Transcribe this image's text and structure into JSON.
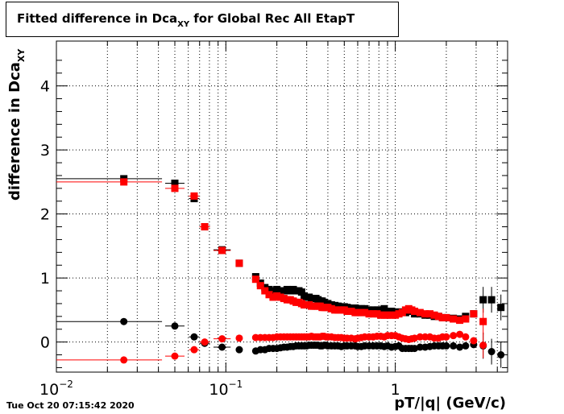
{
  "title": {
    "prefix": "Fitted difference in Dca",
    "subscript": "XY",
    "suffix": " for Global Rec All EtapT"
  },
  "timestamp": "Tue Oct 20 07:15:42 2020",
  "chart_data": {
    "type": "scatter",
    "xlabel": "pT/|q| (GeV/c)",
    "ylabel": {
      "main": "difference in Dca",
      "subscript": "XY"
    },
    "xscale": "log",
    "xlim": [
      0.01,
      4.6
    ],
    "ylim": [
      -0.47,
      4.7
    ],
    "grid": true,
    "x_tick_labels": [
      {
        "value": 0.01,
        "base": "10",
        "exp": "−2"
      },
      {
        "value": 0.1,
        "base": "10",
        "exp": "−1"
      },
      {
        "value": 1,
        "text": "1"
      }
    ],
    "y_ticks": [
      0,
      1,
      2,
      3,
      4
    ],
    "series": [
      {
        "color": "#000000",
        "marker": "square",
        "points": [
          [
            0.025,
            2.55
          ],
          [
            0.05,
            2.48
          ],
          [
            0.065,
            2.24
          ],
          [
            0.075,
            1.8
          ],
          [
            0.095,
            1.44
          ],
          [
            0.12,
            1.23
          ],
          [
            0.15,
            1.02
          ],
          [
            0.16,
            0.92
          ],
          [
            0.17,
            0.85
          ],
          [
            0.18,
            0.82
          ],
          [
            0.19,
            0.8
          ],
          [
            0.2,
            0.82
          ],
          [
            0.21,
            0.8
          ],
          [
            0.22,
            0.8
          ],
          [
            0.23,
            0.82
          ],
          [
            0.24,
            0.8
          ],
          [
            0.25,
            0.82
          ],
          [
            0.26,
            0.8
          ],
          [
            0.27,
            0.8
          ],
          [
            0.28,
            0.78
          ],
          [
            0.29,
            0.72
          ],
          [
            0.3,
            0.7
          ],
          [
            0.31,
            0.7
          ],
          [
            0.32,
            0.68
          ],
          [
            0.33,
            0.68
          ],
          [
            0.34,
            0.68
          ],
          [
            0.35,
            0.66
          ],
          [
            0.36,
            0.64
          ],
          [
            0.37,
            0.64
          ],
          [
            0.38,
            0.62
          ],
          [
            0.39,
            0.6
          ],
          [
            0.4,
            0.6
          ],
          [
            0.42,
            0.58
          ],
          [
            0.44,
            0.57
          ],
          [
            0.46,
            0.56
          ],
          [
            0.48,
            0.55
          ],
          [
            0.5,
            0.55
          ],
          [
            0.52,
            0.54
          ],
          [
            0.55,
            0.53
          ],
          [
            0.58,
            0.53
          ],
          [
            0.6,
            0.52
          ],
          [
            0.63,
            0.52
          ],
          [
            0.66,
            0.52
          ],
          [
            0.7,
            0.5
          ],
          [
            0.74,
            0.5
          ],
          [
            0.78,
            0.5
          ],
          [
            0.82,
            0.5
          ],
          [
            0.86,
            0.52
          ],
          [
            0.9,
            0.48
          ],
          [
            0.95,
            0.48
          ],
          [
            1.0,
            0.47
          ],
          [
            1.05,
            0.46
          ],
          [
            1.1,
            0.47
          ],
          [
            1.15,
            0.46
          ],
          [
            1.2,
            0.5
          ],
          [
            1.25,
            0.48
          ],
          [
            1.3,
            0.44
          ],
          [
            1.4,
            0.44
          ],
          [
            1.5,
            0.42
          ],
          [
            1.6,
            0.42
          ],
          [
            1.7,
            0.4
          ],
          [
            1.8,
            0.4
          ],
          [
            1.9,
            0.38
          ],
          [
            2.0,
            0.38
          ],
          [
            2.2,
            0.37
          ],
          [
            2.4,
            0.36
          ],
          [
            2.6,
            0.4
          ],
          [
            2.9,
            0.44
          ],
          [
            3.3,
            0.66
          ],
          [
            3.7,
            0.66
          ],
          [
            4.2,
            0.54
          ]
        ]
      },
      {
        "color": "#ff0000",
        "marker": "square",
        "points": [
          [
            0.025,
            2.5
          ],
          [
            0.05,
            2.4
          ],
          [
            0.065,
            2.28
          ],
          [
            0.075,
            1.8
          ],
          [
            0.095,
            1.43
          ],
          [
            0.12,
            1.23
          ],
          [
            0.15,
            0.98
          ],
          [
            0.16,
            0.88
          ],
          [
            0.17,
            0.8
          ],
          [
            0.18,
            0.74
          ],
          [
            0.19,
            0.7
          ],
          [
            0.2,
            0.72
          ],
          [
            0.21,
            0.7
          ],
          [
            0.22,
            0.68
          ],
          [
            0.23,
            0.66
          ],
          [
            0.24,
            0.66
          ],
          [
            0.25,
            0.64
          ],
          [
            0.26,
            0.62
          ],
          [
            0.27,
            0.62
          ],
          [
            0.28,
            0.6
          ],
          [
            0.29,
            0.58
          ],
          [
            0.3,
            0.58
          ],
          [
            0.31,
            0.58
          ],
          [
            0.32,
            0.56
          ],
          [
            0.33,
            0.56
          ],
          [
            0.34,
            0.56
          ],
          [
            0.35,
            0.56
          ],
          [
            0.36,
            0.56
          ],
          [
            0.37,
            0.54
          ],
          [
            0.38,
            0.54
          ],
          [
            0.39,
            0.54
          ],
          [
            0.4,
            0.54
          ],
          [
            0.42,
            0.52
          ],
          [
            0.44,
            0.5
          ],
          [
            0.46,
            0.5
          ],
          [
            0.48,
            0.5
          ],
          [
            0.5,
            0.5
          ],
          [
            0.52,
            0.48
          ],
          [
            0.55,
            0.48
          ],
          [
            0.58,
            0.46
          ],
          [
            0.6,
            0.46
          ],
          [
            0.63,
            0.46
          ],
          [
            0.66,
            0.46
          ],
          [
            0.7,
            0.44
          ],
          [
            0.74,
            0.44
          ],
          [
            0.78,
            0.44
          ],
          [
            0.82,
            0.42
          ],
          [
            0.86,
            0.42
          ],
          [
            0.9,
            0.42
          ],
          [
            0.95,
            0.42
          ],
          [
            1.0,
            0.42
          ],
          [
            1.05,
            0.44
          ],
          [
            1.1,
            0.46
          ],
          [
            1.15,
            0.5
          ],
          [
            1.2,
            0.52
          ],
          [
            1.25,
            0.5
          ],
          [
            1.3,
            0.48
          ],
          [
            1.4,
            0.46
          ],
          [
            1.5,
            0.44
          ],
          [
            1.6,
            0.44
          ],
          [
            1.7,
            0.42
          ],
          [
            1.8,
            0.4
          ],
          [
            1.9,
            0.38
          ],
          [
            2.0,
            0.38
          ],
          [
            2.2,
            0.36
          ],
          [
            2.4,
            0.34
          ],
          [
            2.6,
            0.36
          ],
          [
            2.9,
            0.44
          ],
          [
            3.3,
            0.32
          ]
        ]
      },
      {
        "color": "#000000",
        "marker": "circle",
        "points": [
          [
            0.025,
            0.32
          ],
          [
            0.05,
            0.25
          ],
          [
            0.065,
            0.08
          ],
          [
            0.075,
            -0.02
          ],
          [
            0.095,
            -0.08
          ],
          [
            0.12,
            -0.12
          ],
          [
            0.15,
            -0.14
          ],
          [
            0.16,
            -0.12
          ],
          [
            0.17,
            -0.12
          ],
          [
            0.18,
            -0.1
          ],
          [
            0.19,
            -0.1
          ],
          [
            0.2,
            -0.1
          ],
          [
            0.21,
            -0.09
          ],
          [
            0.22,
            -0.08
          ],
          [
            0.23,
            -0.08
          ],
          [
            0.24,
            -0.07
          ],
          [
            0.25,
            -0.07
          ],
          [
            0.26,
            -0.06
          ],
          [
            0.27,
            -0.06
          ],
          [
            0.28,
            -0.06
          ],
          [
            0.29,
            -0.06
          ],
          [
            0.3,
            -0.06
          ],
          [
            0.31,
            -0.05
          ],
          [
            0.32,
            -0.05
          ],
          [
            0.33,
            -0.05
          ],
          [
            0.34,
            -0.05
          ],
          [
            0.35,
            -0.05
          ],
          [
            0.36,
            -0.06
          ],
          [
            0.37,
            -0.06
          ],
          [
            0.38,
            -0.05
          ],
          [
            0.39,
            -0.05
          ],
          [
            0.4,
            -0.06
          ],
          [
            0.42,
            -0.06
          ],
          [
            0.44,
            -0.06
          ],
          [
            0.46,
            -0.06
          ],
          [
            0.48,
            -0.07
          ],
          [
            0.5,
            -0.06
          ],
          [
            0.52,
            -0.06
          ],
          [
            0.55,
            -0.06
          ],
          [
            0.58,
            -0.06
          ],
          [
            0.6,
            -0.07
          ],
          [
            0.63,
            -0.07
          ],
          [
            0.66,
            -0.06
          ],
          [
            0.7,
            -0.06
          ],
          [
            0.74,
            -0.06
          ],
          [
            0.78,
            -0.06
          ],
          [
            0.82,
            -0.06
          ],
          [
            0.86,
            -0.07
          ],
          [
            0.9,
            -0.06
          ],
          [
            0.95,
            -0.08
          ],
          [
            1.0,
            -0.07
          ],
          [
            1.05,
            -0.06
          ],
          [
            1.1,
            -0.1
          ],
          [
            1.15,
            -0.1
          ],
          [
            1.2,
            -0.1
          ],
          [
            1.25,
            -0.1
          ],
          [
            1.3,
            -0.1
          ],
          [
            1.4,
            -0.08
          ],
          [
            1.5,
            -0.08
          ],
          [
            1.6,
            -0.07
          ],
          [
            1.7,
            -0.06
          ],
          [
            1.8,
            -0.06
          ],
          [
            1.9,
            -0.06
          ],
          [
            2.0,
            -0.06
          ],
          [
            2.2,
            -0.06
          ],
          [
            2.4,
            -0.08
          ],
          [
            2.6,
            -0.06
          ],
          [
            2.9,
            -0.04
          ],
          [
            3.3,
            -0.06
          ],
          [
            3.7,
            -0.15
          ],
          [
            4.2,
            -0.2
          ]
        ]
      },
      {
        "color": "#ff0000",
        "marker": "circle",
        "points": [
          [
            0.025,
            -0.28
          ],
          [
            0.05,
            -0.22
          ],
          [
            0.065,
            -0.12
          ],
          [
            0.075,
            0.0
          ],
          [
            0.095,
            0.05
          ],
          [
            0.12,
            0.06
          ],
          [
            0.15,
            0.07
          ],
          [
            0.16,
            0.07
          ],
          [
            0.17,
            0.07
          ],
          [
            0.18,
            0.07
          ],
          [
            0.19,
            0.07
          ],
          [
            0.2,
            0.08
          ],
          [
            0.21,
            0.08
          ],
          [
            0.22,
            0.08
          ],
          [
            0.23,
            0.08
          ],
          [
            0.24,
            0.08
          ],
          [
            0.25,
            0.08
          ],
          [
            0.26,
            0.08
          ],
          [
            0.27,
            0.08
          ],
          [
            0.28,
            0.08
          ],
          [
            0.29,
            0.08
          ],
          [
            0.3,
            0.08
          ],
          [
            0.31,
            0.08
          ],
          [
            0.32,
            0.09
          ],
          [
            0.33,
            0.08
          ],
          [
            0.34,
            0.08
          ],
          [
            0.35,
            0.08
          ],
          [
            0.36,
            0.08
          ],
          [
            0.37,
            0.09
          ],
          [
            0.38,
            0.09
          ],
          [
            0.39,
            0.08
          ],
          [
            0.4,
            0.08
          ],
          [
            0.42,
            0.08
          ],
          [
            0.44,
            0.07
          ],
          [
            0.46,
            0.07
          ],
          [
            0.48,
            0.07
          ],
          [
            0.5,
            0.06
          ],
          [
            0.52,
            0.06
          ],
          [
            0.55,
            0.06
          ],
          [
            0.58,
            0.05
          ],
          [
            0.6,
            0.06
          ],
          [
            0.63,
            0.07
          ],
          [
            0.66,
            0.08
          ],
          [
            0.7,
            0.08
          ],
          [
            0.74,
            0.08
          ],
          [
            0.78,
            0.09
          ],
          [
            0.82,
            0.09
          ],
          [
            0.86,
            0.08
          ],
          [
            0.9,
            0.1
          ],
          [
            0.95,
            0.1
          ],
          [
            1.0,
            0.1
          ],
          [
            1.05,
            0.08
          ],
          [
            1.1,
            0.06
          ],
          [
            1.15,
            0.05
          ],
          [
            1.2,
            0.04
          ],
          [
            1.25,
            0.05
          ],
          [
            1.3,
            0.06
          ],
          [
            1.4,
            0.08
          ],
          [
            1.5,
            0.08
          ],
          [
            1.6,
            0.08
          ],
          [
            1.7,
            0.06
          ],
          [
            1.8,
            0.06
          ],
          [
            1.9,
            0.08
          ],
          [
            2.0,
            0.08
          ],
          [
            2.2,
            0.1
          ],
          [
            2.4,
            0.12
          ],
          [
            2.6,
            0.08
          ],
          [
            2.9,
            0.02
          ],
          [
            3.3,
            -0.05
          ]
        ]
      }
    ]
  }
}
